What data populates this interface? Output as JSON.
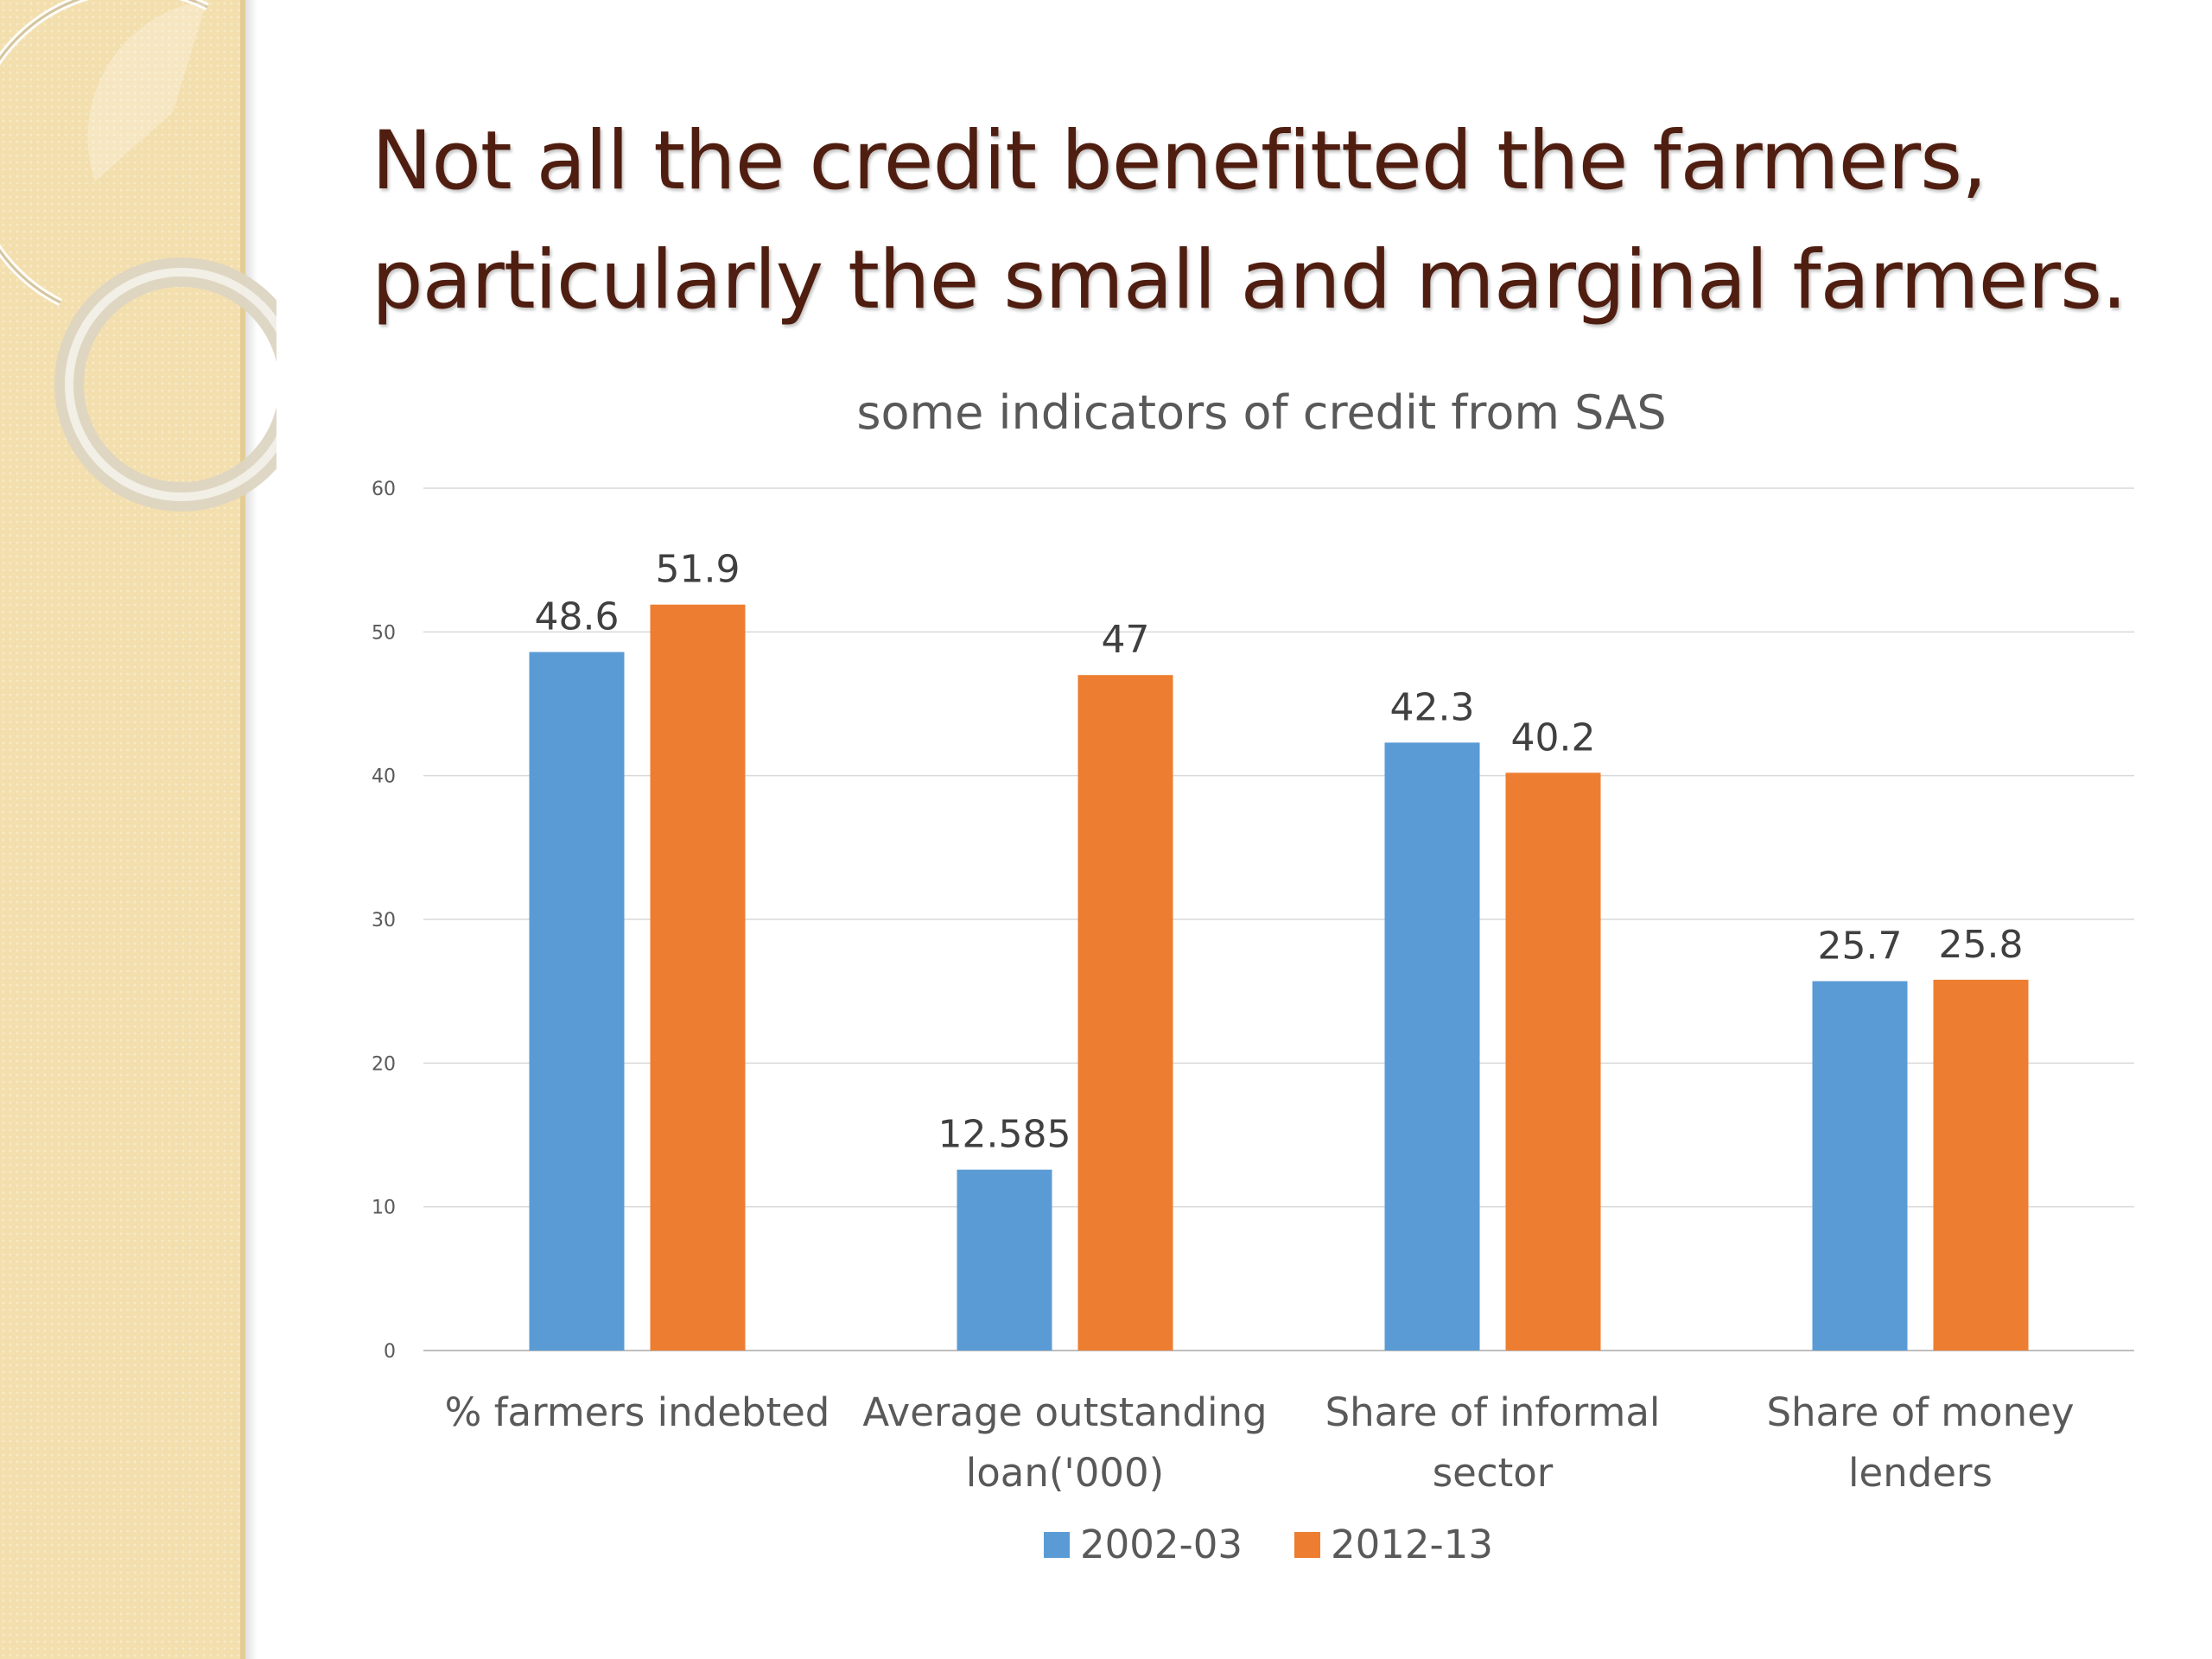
{
  "slide": {
    "title_line1": "Not all the credit benefitted the farmers,",
    "title_line2": "particularly the small and marginal farmers."
  },
  "chart_data": {
    "type": "bar",
    "title": "some indicators of credit from SAS",
    "categories": [
      [
        "% farmers indebted"
      ],
      [
        "Average outstanding",
        "loan('000)"
      ],
      [
        "Share of informal",
        "sector"
      ],
      [
        "Share of money",
        "lenders"
      ]
    ],
    "series": [
      {
        "name": "2002-03",
        "color": "#5b9bd5",
        "values": [
          48.6,
          12.585,
          42.3,
          25.7
        ],
        "labels": [
          "48.6",
          "12.585",
          "42.3",
          "25.7"
        ]
      },
      {
        "name": "2012-13",
        "color": "#ed7d31",
        "values": [
          51.9,
          47,
          40.2,
          25.8
        ],
        "labels": [
          "51.9",
          "47",
          "40.2",
          "25.8"
        ]
      }
    ],
    "ylim": [
      0,
      60
    ],
    "yticks": [
      "0",
      "10",
      "20",
      "30",
      "40",
      "50",
      "60"
    ],
    "grid": true,
    "legend": "bottom",
    "xlabel": "",
    "ylabel": ""
  }
}
